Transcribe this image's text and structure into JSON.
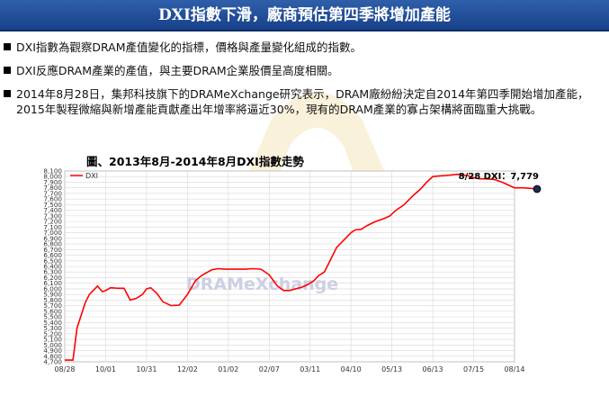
{
  "header": {
    "title": "DXI指數下滑，廠商預估第四季將增加產能"
  },
  "bullets": [
    {
      "text": "DXI指數為觀察DRAM產值變化的指標，價格與產量變化組成的指數。"
    },
    {
      "text": "DXI反應DRAM產業的產值，與主要DRAM企業股價呈高度相關。"
    },
    {
      "text": "2014年8月28日，集邦科技旗下的DRAMeXchange研究表示，DRAM廠紛紛決定自2014年第四季開始增加產能，2015年製程微縮與新增產能貢獻產出年增率將逼近30%，現有的DRAM產業的寡占架構將面臨重大挑戰。"
    }
  ],
  "figure": {
    "caption": "圖、2013年8月-2014年8月DXI指數走勢"
  },
  "chart_data": {
    "type": "line",
    "legend": "DXI",
    "legend_placement": "top-left",
    "annotation": "8/28 DXI：7,779",
    "watermark": "DRAMeXchange",
    "grid": true,
    "ylim": [
      4700,
      8100
    ],
    "yticks": [
      "4,700",
      "4,800",
      "4,900",
      "5,000",
      "5,100",
      "5,200",
      "5,300",
      "5,400",
      "5,500",
      "5,600",
      "5,700",
      "5,800",
      "5,900",
      "6,000",
      "6,100",
      "6,200",
      "6,300",
      "6,400",
      "6,500",
      "6,600",
      "6,700",
      "6,800",
      "6,900",
      "7,000",
      "7,100",
      "7,200",
      "7,300",
      "7,400",
      "7,500",
      "7,600",
      "7,700",
      "7,800",
      "7,900",
      "8,000",
      "8,100"
    ],
    "xticks": [
      "08/28",
      "10/01",
      "10/31",
      "12/02",
      "01/02",
      "02/07",
      "03/11",
      "04/10",
      "05/13",
      "06/13",
      "07/15",
      "08/14"
    ],
    "series": [
      {
        "name": "DXI",
        "color": "#ff0000",
        "x": [
          0,
          0.06,
          0.12,
          0.2,
          0.3,
          0.5,
          0.6,
          0.8,
          0.92,
          1.0,
          1.12,
          1.3,
          1.45,
          1.6,
          1.75,
          1.9,
          2.0,
          2.1,
          2.25,
          2.4,
          2.6,
          2.8,
          3.0,
          3.2,
          3.35,
          3.5,
          3.6,
          3.75,
          3.9,
          4.05,
          4.2,
          4.4,
          4.6,
          4.8,
          5.0,
          5.1,
          5.2,
          5.35,
          5.5,
          5.65,
          5.8,
          5.95,
          6.1,
          6.2,
          6.35,
          6.5,
          6.65,
          6.8,
          7.0,
          7.1,
          7.25,
          7.4,
          7.6,
          7.8,
          7.95,
          8.1,
          8.3,
          8.5,
          8.7,
          8.85,
          9.0,
          9.15,
          9.3,
          9.45,
          9.6,
          9.7,
          9.85,
          10.0,
          10.15,
          10.3,
          10.5,
          10.7,
          10.85,
          11.0,
          11.2,
          11.4,
          11.55
        ],
        "values": [
          4730,
          4730,
          4730,
          4730,
          5300,
          5750,
          5900,
          6050,
          5950,
          5970,
          6020,
          6010,
          6010,
          5800,
          5830,
          5900,
          6000,
          6020,
          5920,
          5770,
          5700,
          5710,
          5900,
          6150,
          6240,
          6300,
          6340,
          6360,
          6350,
          6350,
          6350,
          6350,
          6360,
          6350,
          6250,
          6150,
          6050,
          5970,
          5970,
          6000,
          6030,
          6080,
          6150,
          6230,
          6300,
          6520,
          6740,
          6850,
          7000,
          7050,
          7060,
          7130,
          7200,
          7250,
          7300,
          7400,
          7500,
          7650,
          7780,
          7900,
          8000,
          8010,
          8020,
          8030,
          8040,
          8030,
          8020,
          7980,
          7960,
          7960,
          7950,
          7900,
          7850,
          7800,
          7800,
          7790,
          7779
        ]
      }
    ]
  }
}
